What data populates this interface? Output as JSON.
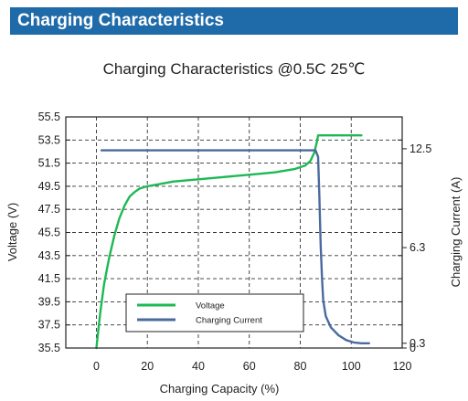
{
  "page": {
    "section_title": "Charging Characteristics"
  },
  "chart_data": {
    "type": "line",
    "title": "Charging Characteristics @0.5C 25℃",
    "xlabel": "Charging Capacity (%)",
    "ylabel": "Voltage (V)",
    "y2label": "Charging Current (A)",
    "xlim": [
      -12,
      120
    ],
    "ylim": [
      35.5,
      55.5
    ],
    "y2lim": [
      0,
      14.5
    ],
    "x_ticks": [
      0,
      20,
      40,
      60,
      80,
      100,
      120
    ],
    "y_ticks": [
      35.5,
      37.5,
      39.5,
      41.5,
      43.5,
      45.5,
      47.5,
      49.5,
      51.5,
      53.5,
      55.5
    ],
    "y2_ticks": [
      0,
      0.3,
      6.3,
      12.5
    ],
    "x_ticklabels": [
      "0",
      "20",
      "40",
      "60",
      "80",
      "100",
      "120"
    ],
    "y_ticklabels": [
      "35.5",
      "37.5",
      "39.5",
      "41.5",
      "43.5",
      "45.5",
      "47.5",
      "49.5",
      "51.5",
      "53.5",
      "55.5"
    ],
    "y2_ticklabels": [
      "0",
      "0.3",
      "6.3",
      "12.5"
    ],
    "grid": true,
    "legend_position": "bottom-left",
    "series": [
      {
        "name": "Voltage",
        "axis": "left",
        "color": "#1db954",
        "x": [
          0,
          0.5,
          1.5,
          3,
          5,
          7,
          9,
          11,
          13,
          15,
          17,
          20,
          25,
          30,
          40,
          50,
          60,
          70,
          78,
          82,
          84,
          85.5,
          86.5,
          87,
          88,
          92,
          100,
          104
        ],
        "y": [
          35.5,
          36.5,
          38.5,
          41.0,
          43.3,
          45.2,
          46.7,
          47.8,
          48.6,
          49.0,
          49.3,
          49.5,
          49.7,
          49.9,
          50.1,
          50.3,
          50.5,
          50.7,
          51.0,
          51.3,
          51.7,
          52.4,
          53.3,
          53.9,
          53.9,
          53.9,
          53.9,
          53.9
        ]
      },
      {
        "name": "Charging Current",
        "axis": "right",
        "color": "#4a6a9e",
        "x": [
          2,
          20,
          40,
          60,
          80,
          86,
          87,
          87.5,
          88,
          88.5,
          89,
          90,
          92,
          95,
          98,
          101,
          104,
          107
        ],
        "y": [
          12.4,
          12.4,
          12.4,
          12.4,
          12.4,
          12.4,
          12.0,
          9.5,
          6.5,
          4.5,
          3.0,
          2.0,
          1.3,
          0.8,
          0.5,
          0.35,
          0.3,
          0.3
        ]
      }
    ]
  }
}
